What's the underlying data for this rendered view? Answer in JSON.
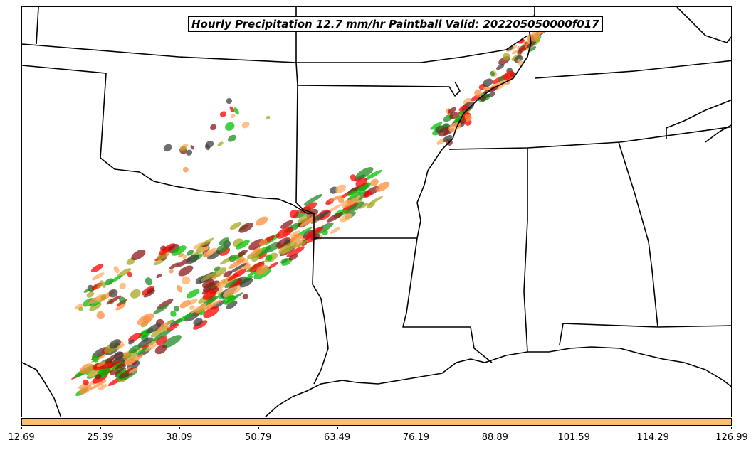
{
  "title": "Hourly Precipitation 12.7 mm/hr Paintball Valid: 202205050000f017",
  "colorbar": {
    "color": "#fdbf6f",
    "ticks": [
      "12.69",
      "25.39",
      "38.09",
      "50.79",
      "63.49",
      "76.19",
      "88.89",
      "101.59",
      "114.29",
      "126.99"
    ]
  },
  "member_colors": [
    "#ff0000",
    "#00c000",
    "#fd8d3c",
    "#a6a620",
    "#8b1a1a",
    "#404040",
    "#228b22",
    "#fdae61"
  ]
}
